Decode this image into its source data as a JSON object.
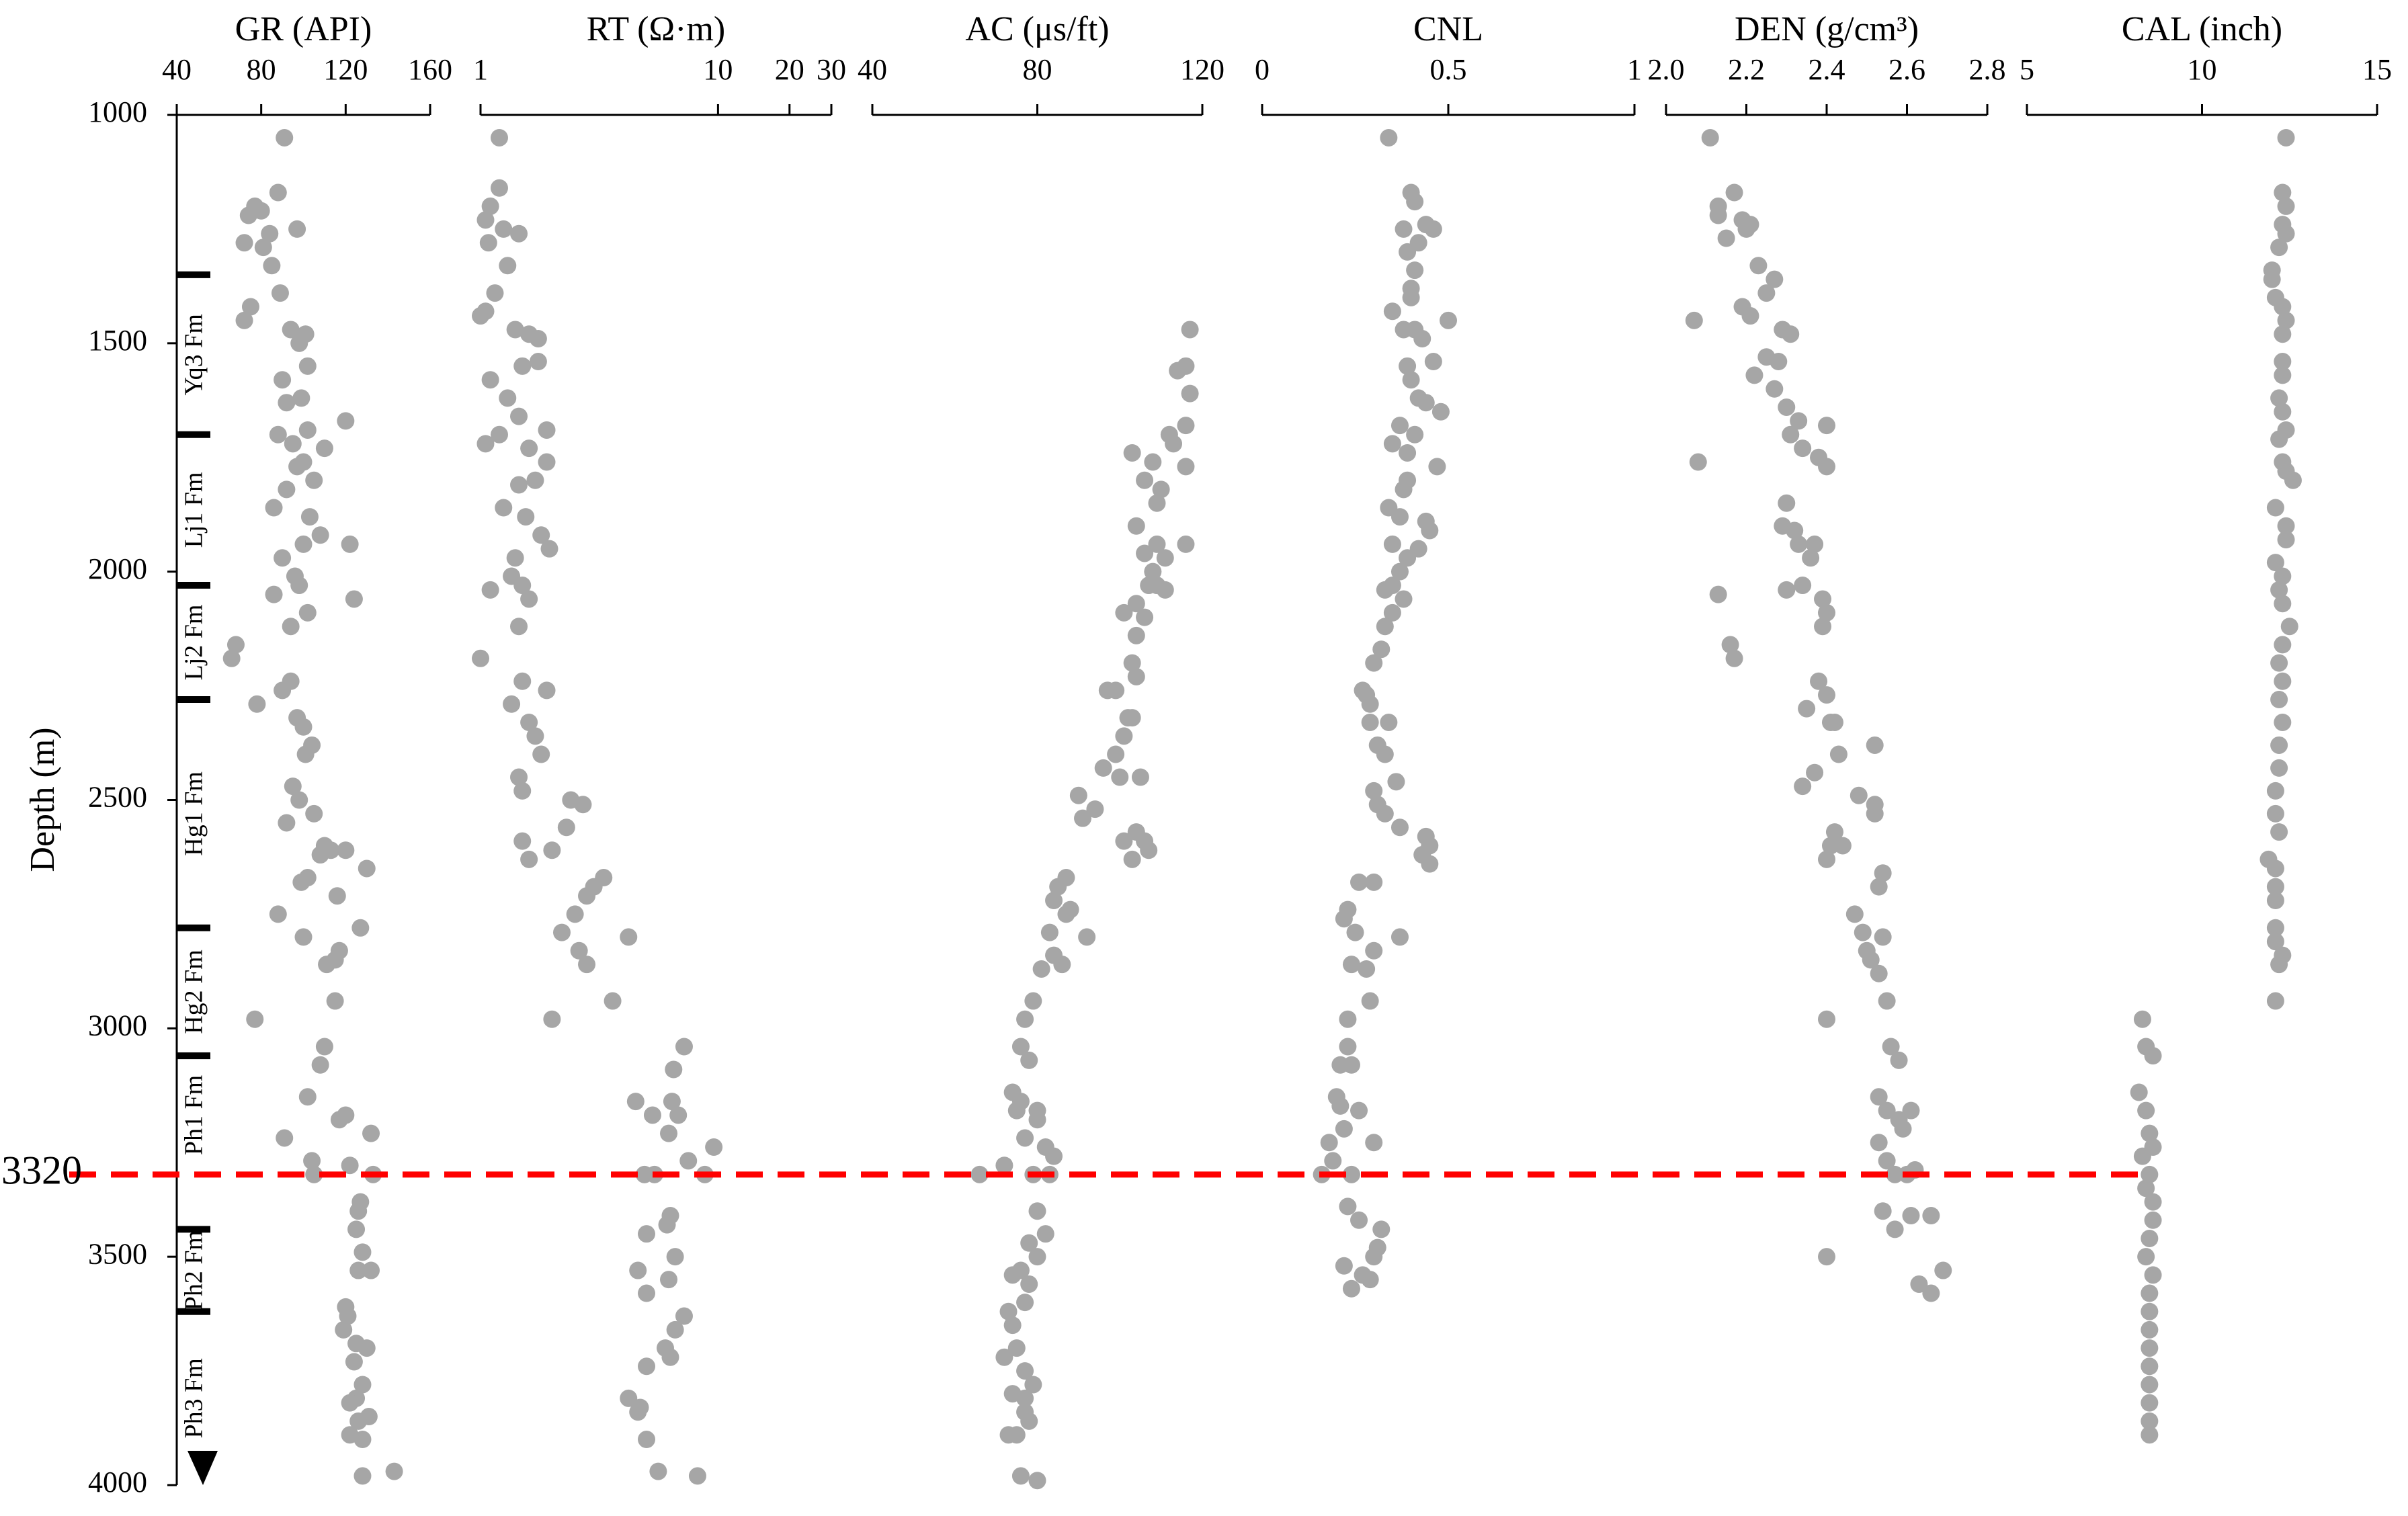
{
  "depth_marker": {
    "value": 3320,
    "color": "#ff0000"
  },
  "formations": [
    {
      "name": "Yq3 Fm",
      "top": 1350,
      "bottom": 1700
    },
    {
      "name": "Lj1 Fm",
      "top": 1700,
      "bottom": 2030
    },
    {
      "name": "Lj2 Fm",
      "top": 2030,
      "bottom": 2280
    },
    {
      "name": "Hg1 Fm",
      "top": 2280,
      "bottom": 2780
    },
    {
      "name": "Hg2 Fm",
      "top": 2780,
      "bottom": 3060
    },
    {
      "name": "Ph1 Fm",
      "top": 3060,
      "bottom": 3320
    },
    {
      "name": "Ph2 Fm",
      "top": 3440,
      "bottom": 3620
    },
    {
      "name": "Ph3 Fm",
      "top": 3620,
      "bottom": 4000
    }
  ],
  "chart_data": [
    {
      "type": "scatter",
      "title": "GR (API)",
      "ylabel": "Depth (m)",
      "color": "#a6a6a6",
      "xlim": [
        40,
        160
      ],
      "xticks": [
        40,
        80,
        120,
        160
      ],
      "ylim": [
        4000,
        1000
      ],
      "yticks": [
        1000,
        1500,
        2000,
        2500,
        3000,
        3500,
        4000
      ],
      "x": [
        91,
        77,
        80,
        74,
        88,
        84,
        97,
        81,
        72,
        85,
        89,
        75,
        72,
        94,
        101,
        98,
        102,
        90,
        99,
        92,
        120,
        102,
        88,
        95,
        110,
        100,
        97,
        105,
        92,
        86,
        103,
        108,
        100,
        122,
        90,
        96,
        98,
        86,
        102,
        94,
        124,
        68,
        66,
        94,
        90,
        78,
        97,
        100,
        104,
        101,
        95,
        98,
        92,
        105,
        110,
        113,
        108,
        120,
        130,
        102,
        99,
        116,
        88,
        127,
        100,
        117,
        115,
        111,
        115,
        77,
        110,
        108,
        102,
        120,
        117,
        91,
        132,
        104,
        122,
        133,
        105,
        127,
        126,
        125,
        128,
        126,
        132,
        120,
        121,
        119,
        125,
        130,
        124,
        128,
        125,
        122,
        131,
        126,
        122,
        128,
        128,
        143
      ],
      "y": [
        1050,
        1200,
        1210,
        1220,
        1170,
        1260,
        1250,
        1290,
        1280,
        1330,
        1390,
        1420,
        1450,
        1470,
        1480,
        1500,
        1550,
        1580,
        1620,
        1630,
        1670,
        1690,
        1700,
        1720,
        1730,
        1760,
        1770,
        1800,
        1820,
        1860,
        1880,
        1920,
        1940,
        1940,
        1970,
        2010,
        2030,
        2050,
        2090,
        2120,
        2060,
        2160,
        2190,
        2240,
        2260,
        2290,
        2320,
        2340,
        2380,
        2400,
        2470,
        2500,
        2550,
        2530,
        2600,
        2610,
        2620,
        2610,
        2650,
        2670,
        2680,
        2710,
        2750,
        2780,
        2800,
        2830,
        2850,
        2860,
        2940,
        2980,
        3040,
        3080,
        3150,
        3190,
        3200,
        3240,
        3230,
        3290,
        3300,
        3320,
        3320,
        3380,
        3400,
        3440,
        3490,
        3530,
        3530,
        3610,
        3630,
        3660,
        3690,
        3700,
        3730,
        3780,
        3810,
        3820,
        3850,
        3860,
        3890,
        3900,
        3980,
        3970
      ]
    },
    {
      "type": "scatter",
      "title": "RT (Ω·m)",
      "color": "#a6a6a6",
      "xscale": "log",
      "xlim": [
        1,
        30
      ],
      "xticks": [
        1,
        10,
        20,
        30
      ],
      "ylim": [
        4000,
        1000
      ],
      "x": [
        1.2,
        1.1,
        1.05,
        1.25,
        1.2,
        1.45,
        1.08,
        1.3,
        1.15,
        1.0,
        1.05,
        1.4,
        1.75,
        1.6,
        1.5,
        1.75,
        1.1,
        1.3,
        1.45,
        1.9,
        1.05,
        1.2,
        1.6,
        1.9,
        1.7,
        1.45,
        1.25,
        1.55,
        1.8,
        1.95,
        1.4,
        1.35,
        1.5,
        1.1,
        1.6,
        1.45,
        1.0,
        1.5,
        1.9,
        1.35,
        1.6,
        1.7,
        1.8,
        1.45,
        1.5,
        2.4,
        2.7,
        2.3,
        1.5,
        1.6,
        2.0,
        3.3,
        3.0,
        2.8,
        2.5,
        2.2,
        4.2,
        2.6,
        2.8,
        3.6,
        2.0,
        7.2,
        6.5,
        4.5,
        6.4,
        6.8,
        5.3,
        6.2,
        9.6,
        7.5,
        5.4,
        8.8,
        4.9,
        6.3,
        6.1,
        5.0,
        4.6,
        6.6,
        5.0,
        6.2,
        7.2,
        6.6,
        6.0,
        5.0,
        6.3,
        4.2,
        4.7,
        4.6,
        5.0,
        5.6,
        8.2
      ],
      "y": [
        1050,
        1200,
        1230,
        1250,
        1160,
        1260,
        1280,
        1330,
        1390,
        1440,
        1430,
        1470,
        1490,
        1480,
        1550,
        1540,
        1580,
        1620,
        1660,
        1690,
        1720,
        1700,
        1730,
        1760,
        1800,
        1810,
        1860,
        1880,
        1920,
        1950,
        1970,
        2010,
        2030,
        2040,
        2060,
        2120,
        2190,
        2240,
        2260,
        2290,
        2330,
        2360,
        2400,
        2450,
        2480,
        2500,
        2510,
        2560,
        2590,
        2630,
        2610,
        2670,
        2690,
        2710,
        2750,
        2790,
        2800,
        2830,
        2860,
        2940,
        2980,
        3040,
        3090,
        3160,
        3160,
        3190,
        3190,
        3230,
        3260,
        3290,
        3320,
        3320,
        3320,
        3410,
        3430,
        3450,
        3530,
        3500,
        3580,
        3550,
        3630,
        3660,
        3700,
        3740,
        3720,
        3810,
        3830,
        3840,
        3900,
        3970,
        3980
      ]
    },
    {
      "type": "scatter",
      "title": "AC (μs/ft)",
      "color": "#a6a6a6",
      "xlim": [
        40,
        120
      ],
      "xticks": [
        40,
        80,
        120
      ],
      "ylim": [
        4000,
        1000
      ],
      "x": [
        117,
        116,
        114,
        117,
        116,
        112,
        113,
        116,
        103,
        108,
        106,
        110,
        109,
        104,
        109,
        116,
        106,
        111,
        108,
        107,
        109,
        104,
        111,
        106,
        101,
        104,
        103,
        104,
        97,
        99,
        102,
        101,
        103,
        99,
        96,
        100,
        105,
        90,
        94,
        91,
        104,
        101,
        106,
        103,
        107,
        87,
        85,
        84,
        87,
        88,
        83,
        92,
        84,
        86,
        81,
        79,
        77,
        76,
        78,
        74,
        76,
        80,
        75,
        80,
        77,
        82,
        84,
        72,
        66,
        79,
        83,
        80,
        82,
        78,
        80,
        76,
        78,
        74,
        77,
        73,
        74,
        75,
        72,
        77,
        79,
        74,
        77,
        77,
        78,
        75,
        73,
        76,
        80
      ],
      "y": [
        1470,
        1550,
        1560,
        1610,
        1680,
        1700,
        1720,
        1770,
        1740,
        1760,
        1800,
        1820,
        1850,
        1900,
        1940,
        1940,
        1960,
        1970,
        2000,
        2030,
        2030,
        2070,
        2040,
        2100,
        2090,
        2140,
        2200,
        2230,
        2260,
        2260,
        2320,
        2360,
        2320,
        2400,
        2430,
        2450,
        2450,
        2490,
        2520,
        2540,
        2570,
        2590,
        2590,
        2630,
        2610,
        2670,
        2690,
        2720,
        2750,
        2740,
        2790,
        2800,
        2840,
        2860,
        2870,
        2940,
        2980,
        3040,
        3070,
        3140,
        3160,
        3180,
        3180,
        3200,
        3240,
        3260,
        3280,
        3300,
        3320,
        3320,
        3320,
        3400,
        3450,
        3470,
        3500,
        3530,
        3560,
        3540,
        3600,
        3620,
        3650,
        3700,
        3720,
        3750,
        3780,
        3800,
        3810,
        3840,
        3860,
        3890,
        3890,
        3980,
        3990
      ]
    },
    {
      "type": "scatter",
      "title": "CNL",
      "color": "#a6a6a6",
      "xlim": [
        0,
        1
      ],
      "xticks": [
        0,
        0.5,
        1
      ],
      "ylim": [
        4000,
        1000
      ],
      "x": [
        0.34,
        0.4,
        0.41,
        0.44,
        0.38,
        0.46,
        0.42,
        0.39,
        0.41,
        0.4,
        0.4,
        0.35,
        0.5,
        0.38,
        0.41,
        0.43,
        0.39,
        0.46,
        0.4,
        0.42,
        0.44,
        0.48,
        0.37,
        0.41,
        0.35,
        0.39,
        0.47,
        0.39,
        0.38,
        0.34,
        0.37,
        0.44,
        0.45,
        0.35,
        0.42,
        0.39,
        0.37,
        0.33,
        0.35,
        0.38,
        0.35,
        0.33,
        0.32,
        0.3,
        0.27,
        0.29,
        0.28,
        0.34,
        0.29,
        0.31,
        0.33,
        0.3,
        0.36,
        0.31,
        0.33,
        0.37,
        0.44,
        0.45,
        0.43,
        0.45,
        0.26,
        0.3,
        0.23,
        0.25,
        0.22,
        0.37,
        0.3,
        0.28,
        0.24,
        0.29,
        0.23,
        0.23,
        0.21,
        0.24,
        0.2,
        0.21,
        0.26,
        0.22,
        0.18,
        0.19,
        0.3,
        0.16,
        0.24,
        0.23,
        0.26,
        0.32,
        0.3,
        0.31,
        0.22,
        0.27,
        0.29,
        0.24
      ],
      "y": [
        1050,
        1170,
        1190,
        1240,
        1250,
        1250,
        1280,
        1300,
        1340,
        1380,
        1400,
        1430,
        1450,
        1470,
        1470,
        1490,
        1550,
        1540,
        1580,
        1620,
        1630,
        1650,
        1680,
        1700,
        1720,
        1740,
        1770,
        1800,
        1820,
        1860,
        1880,
        1890,
        1910,
        1940,
        1950,
        1970,
        2000,
        2040,
        2030,
        2060,
        2090,
        2120,
        2170,
        2200,
        2260,
        2290,
        2270,
        2330,
        2330,
        2380,
        2400,
        2480,
        2460,
        2510,
        2530,
        2560,
        2580,
        2600,
        2620,
        2640,
        2680,
        2680,
        2740,
        2790,
        2760,
        2800,
        2830,
        2870,
        2860,
        2940,
        2980,
        3040,
        3080,
        3080,
        3150,
        3170,
        3180,
        3220,
        3250,
        3290,
        3250,
        3320,
        3320,
        3390,
        3420,
        3440,
        3500,
        3480,
        3520,
        3540,
        3550,
        3570
      ]
    },
    {
      "type": "scatter",
      "title": "DEN (g/cm³)",
      "color": "#a6a6a6",
      "xlim": [
        2.0,
        2.8
      ],
      "xticks": [
        {
          "value": 2.0,
          "label": "2.0"
        },
        2.2,
        2.4,
        2.6,
        2.8
      ],
      "ylim": [
        4000,
        1000
      ],
      "x": [
        2.11,
        2.17,
        2.13,
        2.21,
        2.19,
        2.13,
        2.2,
        2.15,
        2.23,
        2.27,
        2.25,
        2.19,
        2.07,
        2.21,
        2.29,
        2.31,
        2.25,
        2.28,
        2.22,
        2.27,
        2.3,
        2.33,
        2.4,
        2.31,
        2.34,
        2.38,
        2.4,
        2.08,
        2.3,
        2.29,
        2.32,
        2.33,
        2.37,
        2.36,
        2.3,
        2.34,
        2.39,
        2.4,
        2.13,
        2.16,
        2.17,
        2.39,
        2.38,
        2.4,
        2.41,
        2.42,
        2.35,
        2.43,
        2.37,
        2.34,
        2.52,
        2.48,
        2.52,
        2.42,
        2.41,
        2.4,
        2.44,
        2.52,
        2.54,
        2.53,
        2.47,
        2.49,
        2.5,
        2.54,
        2.51,
        2.53,
        2.55,
        2.4,
        2.56,
        2.58,
        2.53,
        2.55,
        2.61,
        2.58,
        2.59,
        2.53,
        2.55,
        2.57,
        2.62,
        2.6,
        2.54,
        2.61,
        2.57,
        2.66,
        2.4,
        2.69,
        2.63,
        2.66
      ],
      "y": [
        1050,
        1170,
        1200,
        1240,
        1230,
        1220,
        1250,
        1270,
        1330,
        1360,
        1390,
        1420,
        1450,
        1440,
        1470,
        1480,
        1530,
        1540,
        1570,
        1600,
        1640,
        1670,
        1680,
        1700,
        1730,
        1750,
        1770,
        1760,
        1850,
        1900,
        1910,
        1940,
        1940,
        1970,
        2040,
        2030,
        2060,
        2090,
        2050,
        2160,
        2190,
        2120,
        2240,
        2270,
        2330,
        2330,
        2300,
        2400,
        2440,
        2470,
        2380,
        2490,
        2510,
        2570,
        2600,
        2630,
        2600,
        2530,
        2660,
        2690,
        2750,
        2790,
        2830,
        2800,
        2850,
        2880,
        2940,
        2980,
        3040,
        3070,
        3150,
        3180,
        3180,
        3200,
        3220,
        3250,
        3290,
        3320,
        3310,
        3320,
        3400,
        3410,
        3440,
        3410,
        3500,
        3530,
        3560,
        3580
      ]
    },
    {
      "type": "scatter",
      "title": "CAL (inch)",
      "color": "#a6a6a6",
      "xlim": [
        5,
        15
      ],
      "xticks": [
        5,
        10,
        15
      ],
      "ylim": [
        4000,
        1000
      ],
      "x": [
        12.4,
        12.3,
        12.4,
        12.3,
        12.4,
        12.2,
        12.0,
        12.0,
        12.1,
        12.3,
        12.4,
        12.3,
        12.3,
        12.3,
        12.2,
        12.3,
        12.4,
        12.2,
        12.3,
        12.4,
        12.6,
        12.1,
        12.4,
        12.4,
        12.1,
        12.3,
        12.2,
        12.3,
        12.5,
        12.3,
        12.2,
        12.3,
        12.2,
        12.3,
        12.2,
        12.2,
        12.1,
        12.1,
        12.2,
        11.9,
        12.1,
        12.1,
        12.1,
        12.1,
        12.1,
        12.3,
        12.2,
        12.1,
        8.3,
        8.4,
        8.6,
        8.2,
        8.4,
        8.5,
        8.6,
        8.3,
        8.5,
        8.4,
        8.6,
        8.6,
        8.5,
        8.4,
        8.6,
        8.5,
        8.5,
        8.5,
        8.5,
        8.5,
        8.5,
        8.5,
        8.5,
        8.5
      ],
      "y": [
        1050,
        1170,
        1200,
        1240,
        1260,
        1290,
        1340,
        1360,
        1400,
        1420,
        1450,
        1480,
        1540,
        1570,
        1620,
        1650,
        1690,
        1710,
        1760,
        1780,
        1800,
        1860,
        1900,
        1930,
        1980,
        2010,
        2040,
        2070,
        2120,
        2160,
        2200,
        2240,
        2280,
        2330,
        2380,
        2430,
        2480,
        2530,
        2570,
        2630,
        2650,
        2690,
        2720,
        2780,
        2810,
        2840,
        2860,
        2940,
        2980,
        3040,
        3060,
        3140,
        3180,
        3230,
        3260,
        3280,
        3320,
        3350,
        3380,
        3420,
        3460,
        3500,
        3540,
        3580,
        3620,
        3660,
        3700,
        3740,
        3780,
        3820,
        3860,
        3890
      ]
    }
  ]
}
